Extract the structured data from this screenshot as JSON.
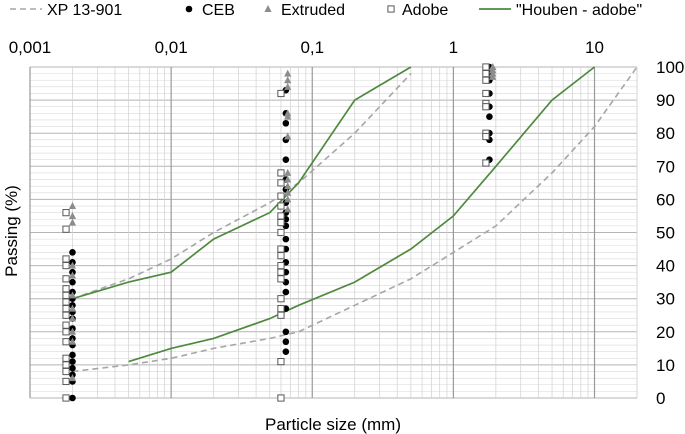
{
  "chart_data": {
    "type": "scatter",
    "xlabel": "Particle size (mm)",
    "ylabel": "Passing (%)",
    "x_scale": "log",
    "xlim": [
      0.001,
      20
    ],
    "ylim": [
      0,
      100
    ],
    "x_ticks": [
      "0,001",
      "0,01",
      "0,1",
      "1",
      "10"
    ],
    "x_tick_values": [
      0.001,
      0.01,
      0.1,
      1,
      10
    ],
    "y_ticks": [
      "0",
      "10",
      "20",
      "30",
      "40",
      "50",
      "60",
      "70",
      "80",
      "90",
      "100"
    ],
    "y_tick_values": [
      0,
      10,
      20,
      30,
      40,
      50,
      60,
      70,
      80,
      90,
      100
    ],
    "grid": true,
    "legend_position": "top",
    "colors": {
      "xp": "#a6a6a6",
      "ceb": "#000000",
      "extruded": "#8c8c8c",
      "adobe": "#595959",
      "houben": "#4e8a3e",
      "grid": "#c8c8c8",
      "axis": "#888888"
    },
    "series": [
      {
        "name": "XP 13-901",
        "kind": "dashed-line",
        "points": [
          [
            0.002,
            8
          ],
          [
            0.005,
            10
          ],
          [
            0.01,
            12
          ],
          [
            0.02,
            15
          ],
          [
            0.05,
            18
          ],
          [
            0.08,
            20
          ],
          [
            0.2,
            28
          ],
          [
            0.5,
            36
          ],
          [
            1,
            44
          ],
          [
            2,
            52
          ],
          [
            5,
            68
          ],
          [
            10,
            82
          ],
          [
            20,
            100
          ]
        ]
      },
      {
        "name": "XP 13-901",
        "kind": "dashed-line",
        "points": [
          [
            0.002,
            30
          ],
          [
            0.005,
            36
          ],
          [
            0.01,
            42
          ],
          [
            0.02,
            50
          ],
          [
            0.05,
            59
          ],
          [
            0.08,
            65
          ],
          [
            0.2,
            80
          ],
          [
            0.5,
            98
          ]
        ]
      },
      {
        "name": "CEB",
        "kind": "filled-circle",
        "points": [
          [
            0.002,
            44
          ],
          [
            0.002,
            41
          ],
          [
            0.002,
            38
          ],
          [
            0.002,
            35
          ],
          [
            0.002,
            32
          ],
          [
            0.002,
            30
          ],
          [
            0.002,
            28
          ],
          [
            0.002,
            26
          ],
          [
            0.002,
            24
          ],
          [
            0.002,
            21
          ],
          [
            0.002,
            18
          ],
          [
            0.002,
            16
          ],
          [
            0.002,
            13
          ],
          [
            0.002,
            11
          ],
          [
            0.002,
            9
          ],
          [
            0.002,
            7
          ],
          [
            0.002,
            5
          ],
          [
            0.002,
            0
          ],
          [
            0.065,
            93
          ],
          [
            0.065,
            86
          ],
          [
            0.065,
            83
          ],
          [
            0.065,
            78
          ],
          [
            0.065,
            72
          ],
          [
            0.065,
            66
          ],
          [
            0.065,
            63
          ],
          [
            0.065,
            59
          ],
          [
            0.065,
            56
          ],
          [
            0.065,
            54
          ],
          [
            0.065,
            52
          ],
          [
            0.065,
            48
          ],
          [
            0.065,
            45
          ],
          [
            0.065,
            41
          ],
          [
            0.065,
            38
          ],
          [
            0.065,
            35
          ],
          [
            0.065,
            32
          ],
          [
            0.065,
            27
          ],
          [
            0.065,
            20
          ],
          [
            0.065,
            17
          ],
          [
            0.065,
            14
          ],
          [
            1.8,
            100
          ],
          [
            1.8,
            98
          ],
          [
            1.8,
            96
          ],
          [
            1.8,
            92
          ],
          [
            1.8,
            88
          ],
          [
            1.8,
            85
          ],
          [
            1.8,
            80
          ],
          [
            1.8,
            78
          ],
          [
            1.8,
            72
          ]
        ]
      },
      {
        "name": "Extruded",
        "kind": "triangle",
        "points": [
          [
            0.002,
            58
          ],
          [
            0.002,
            55
          ],
          [
            0.002,
            53
          ],
          [
            0.002,
            40
          ],
          [
            0.002,
            37
          ],
          [
            0.002,
            31
          ],
          [
            0.002,
            27
          ],
          [
            0.002,
            24
          ],
          [
            0.002,
            20
          ],
          [
            0.002,
            17
          ],
          [
            0.002,
            6
          ],
          [
            0.067,
            98
          ],
          [
            0.067,
            96
          ],
          [
            0.067,
            94
          ],
          [
            0.067,
            86
          ],
          [
            0.067,
            85
          ],
          [
            0.067,
            79
          ],
          [
            0.067,
            68
          ],
          [
            0.067,
            66
          ],
          [
            0.067,
            64
          ],
          [
            0.067,
            62
          ],
          [
            0.067,
            60
          ],
          [
            0.067,
            57
          ],
          [
            1.9,
            100
          ],
          [
            1.9,
            99
          ],
          [
            1.9,
            98
          ],
          [
            1.9,
            97
          ]
        ]
      },
      {
        "name": "Adobe",
        "kind": "open-square",
        "points": [
          [
            0.0018,
            56
          ],
          [
            0.0018,
            51
          ],
          [
            0.0018,
            42
          ],
          [
            0.0018,
            40
          ],
          [
            0.0018,
            36
          ],
          [
            0.0018,
            33
          ],
          [
            0.0018,
            31
          ],
          [
            0.0018,
            29
          ],
          [
            0.0018,
            27
          ],
          [
            0.0018,
            25
          ],
          [
            0.0018,
            22
          ],
          [
            0.0018,
            20
          ],
          [
            0.0018,
            17
          ],
          [
            0.0018,
            12
          ],
          [
            0.0018,
            10
          ],
          [
            0.0018,
            8
          ],
          [
            0.0018,
            5
          ],
          [
            0.0018,
            0
          ],
          [
            0.06,
            92
          ],
          [
            0.06,
            68
          ],
          [
            0.06,
            65
          ],
          [
            0.06,
            61
          ],
          [
            0.06,
            58
          ],
          [
            0.06,
            55
          ],
          [
            0.06,
            53
          ],
          [
            0.06,
            50
          ],
          [
            0.06,
            45
          ],
          [
            0.06,
            43
          ],
          [
            0.06,
            40
          ],
          [
            0.06,
            38
          ],
          [
            0.06,
            36
          ],
          [
            0.06,
            30
          ],
          [
            0.06,
            27
          ],
          [
            0.06,
            25
          ],
          [
            0.06,
            11
          ],
          [
            0.06,
            0
          ],
          [
            1.7,
            100
          ],
          [
            1.7,
            98
          ],
          [
            1.7,
            96
          ],
          [
            1.7,
            92
          ],
          [
            1.7,
            89
          ],
          [
            1.7,
            88
          ],
          [
            1.7,
            80
          ],
          [
            1.7,
            79
          ],
          [
            1.7,
            71
          ]
        ]
      },
      {
        "name": "\"Houben - adobe\"",
        "kind": "solid-line",
        "points": [
          [
            0.005,
            11
          ],
          [
            0.01,
            15
          ],
          [
            0.02,
            18
          ],
          [
            0.05,
            24
          ],
          [
            0.08,
            28
          ],
          [
            0.2,
            35
          ],
          [
            0.5,
            45
          ],
          [
            1,
            55
          ],
          [
            2,
            70
          ],
          [
            5,
            90
          ],
          [
            10,
            100
          ]
        ]
      },
      {
        "name": "\"Houben - adobe\"",
        "kind": "solid-line",
        "points": [
          [
            0.002,
            30
          ],
          [
            0.005,
            35
          ],
          [
            0.01,
            38
          ],
          [
            0.02,
            48
          ],
          [
            0.05,
            56
          ],
          [
            0.08,
            65
          ],
          [
            0.2,
            90
          ],
          [
            0.5,
            100
          ]
        ]
      }
    ]
  },
  "legend": [
    {
      "label": "XP 13-901",
      "kind": "dashed-line"
    },
    {
      "label": "CEB",
      "kind": "filled-circle"
    },
    {
      "label": "Extruded",
      "kind": "triangle"
    },
    {
      "label": "Adobe",
      "kind": "open-square"
    },
    {
      "label": "\"Houben - adobe\"",
      "kind": "solid-line"
    }
  ]
}
